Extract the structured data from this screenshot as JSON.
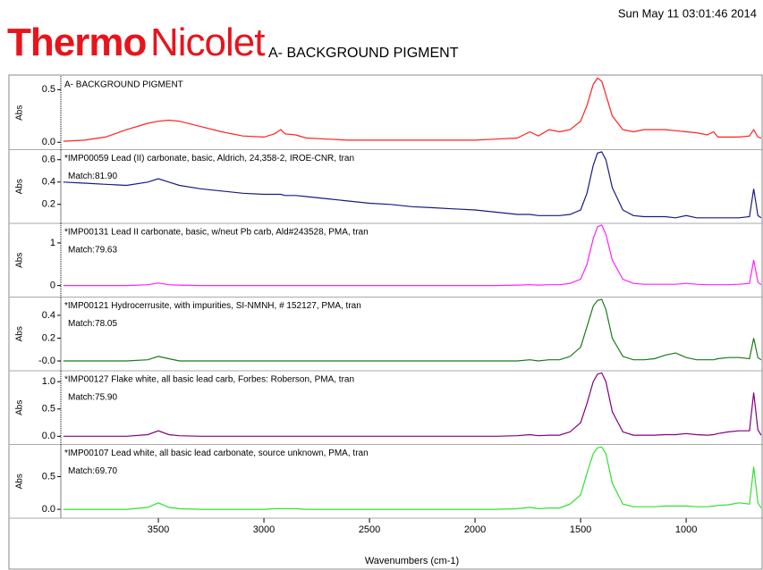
{
  "header": {
    "brand_bold": "Thermo",
    "brand": "Nicolet",
    "title": "A- BACKGROUND PIGMENT",
    "timestamp": "Sun May 11 03:01:46 2014"
  },
  "chart_data": [
    {
      "type": "line",
      "title": "A- BACKGROUND PIGMENT",
      "ylabel": "Abs",
      "color": "#ff2020",
      "xlim": [
        3962,
        636
      ],
      "ylim": [
        -0.07,
        0.63
      ],
      "yticks": [
        0.5,
        {
          "value": 0,
          "label": "0.0"
        }
      ],
      "x": [
        3950,
        3850,
        3750,
        3650,
        3550,
        3500,
        3450,
        3400,
        3300,
        3200,
        3100,
        3000,
        2950,
        2920,
        2900,
        2850,
        2800,
        2700,
        2600,
        2500,
        2400,
        2300,
        2200,
        2100,
        2000,
        1900,
        1800,
        1740,
        1700,
        1650,
        1600,
        1550,
        1500,
        1470,
        1440,
        1420,
        1400,
        1380,
        1350,
        1300,
        1250,
        1200,
        1150,
        1100,
        1050,
        1000,
        950,
        900,
        870,
        850,
        800,
        750,
        700,
        680,
        660,
        645
      ],
      "values": [
        0.01,
        0.02,
        0.05,
        0.12,
        0.18,
        0.2,
        0.21,
        0.2,
        0.15,
        0.1,
        0.06,
        0.05,
        0.08,
        0.12,
        0.08,
        0.07,
        0.04,
        0.03,
        0.02,
        0.02,
        0.02,
        0.02,
        0.02,
        0.02,
        0.02,
        0.03,
        0.04,
        0.1,
        0.06,
        0.12,
        0.1,
        0.12,
        0.2,
        0.35,
        0.55,
        0.61,
        0.58,
        0.45,
        0.25,
        0.12,
        0.1,
        0.12,
        0.12,
        0.12,
        0.11,
        0.1,
        0.09,
        0.07,
        0.1,
        0.05,
        0.05,
        0.05,
        0.06,
        0.12,
        0.05,
        0.04
      ]
    },
    {
      "type": "line",
      "title": "*IMP00059 Lead (II) carbonate, basic, Aldrich, 24,358-2, IROE-CNR, tran",
      "annotation": "Match:81.90",
      "ylabel": "Abs",
      "color": "#1a1a80",
      "xlim": [
        3962,
        636
      ],
      "ylim": [
        0.03,
        0.69
      ],
      "yticks": [
        0.6,
        0.4,
        0.2
      ],
      "x": [
        3950,
        3850,
        3750,
        3650,
        3550,
        3500,
        3450,
        3400,
        3300,
        3200,
        3100,
        3000,
        2950,
        2920,
        2900,
        2850,
        2800,
        2700,
        2600,
        2500,
        2400,
        2300,
        2200,
        2100,
        2000,
        1900,
        1800,
        1740,
        1700,
        1650,
        1600,
        1550,
        1500,
        1470,
        1440,
        1420,
        1400,
        1380,
        1350,
        1300,
        1250,
        1200,
        1150,
        1100,
        1050,
        1000,
        950,
        900,
        870,
        850,
        800,
        750,
        700,
        680,
        660,
        645
      ],
      "values": [
        0.4,
        0.39,
        0.38,
        0.37,
        0.4,
        0.43,
        0.4,
        0.37,
        0.34,
        0.32,
        0.3,
        0.29,
        0.29,
        0.29,
        0.28,
        0.28,
        0.27,
        0.25,
        0.23,
        0.21,
        0.2,
        0.18,
        0.17,
        0.16,
        0.15,
        0.13,
        0.11,
        0.11,
        0.1,
        0.1,
        0.1,
        0.11,
        0.15,
        0.3,
        0.55,
        0.66,
        0.67,
        0.6,
        0.35,
        0.15,
        0.1,
        0.09,
        0.09,
        0.09,
        0.08,
        0.1,
        0.08,
        0.08,
        0.08,
        0.08,
        0.08,
        0.08,
        0.09,
        0.34,
        0.1,
        0.08
      ]
    },
    {
      "type": "line",
      "title": "*IMP00131 Lead II carbonate, basic, w/neut Pb carb, Ald#243528, PMA, tran",
      "annotation": "Match:79.63",
      "ylabel": "Abs",
      "color": "#ff20ff",
      "xlim": [
        3962,
        636
      ],
      "ylim": [
        -0.27,
        1.46
      ],
      "yticks": [
        1,
        0
      ],
      "x": [
        3950,
        3850,
        3750,
        3650,
        3550,
        3500,
        3450,
        3400,
        3300,
        3200,
        3100,
        3000,
        2950,
        2920,
        2900,
        2850,
        2800,
        2700,
        2600,
        2500,
        2400,
        2300,
        2200,
        2100,
        2000,
        1900,
        1800,
        1740,
        1700,
        1650,
        1600,
        1550,
        1500,
        1470,
        1440,
        1420,
        1400,
        1380,
        1350,
        1300,
        1250,
        1200,
        1150,
        1100,
        1050,
        1000,
        950,
        900,
        870,
        850,
        800,
        750,
        700,
        680,
        660,
        645
      ],
      "values": [
        0,
        0,
        0,
        0,
        0.02,
        0.06,
        0.02,
        0.01,
        0,
        0,
        0,
        0,
        0,
        0,
        0,
        0,
        0,
        0,
        0,
        0,
        0,
        0,
        0,
        0,
        0,
        0,
        0.01,
        0.02,
        0.01,
        0.02,
        0.02,
        0.05,
        0.15,
        0.5,
        1.1,
        1.38,
        1.42,
        1.2,
        0.6,
        0.15,
        0.05,
        0.03,
        0.03,
        0.03,
        0.03,
        0.05,
        0.03,
        0.02,
        0.02,
        0.02,
        0.02,
        0.03,
        0.05,
        0.6,
        0.08,
        0.02
      ]
    },
    {
      "type": "line",
      "title": "*IMP00121 Hydrocerrusite, with impurities, SI-NMNH, # 152127, PMA, tran",
      "annotation": "Match:78.05",
      "ylabel": "Abs",
      "color": "#1a7a1a",
      "xlim": [
        3962,
        636
      ],
      "ylim": [
        -0.086,
        0.56
      ],
      "yticks": [
        0.4,
        0.2,
        {
          "value": 0,
          "label": "-0.0"
        }
      ],
      "x": [
        3950,
        3850,
        3750,
        3650,
        3550,
        3500,
        3450,
        3400,
        3300,
        3200,
        3100,
        3000,
        2950,
        2920,
        2900,
        2850,
        2800,
        2700,
        2600,
        2500,
        2400,
        2300,
        2200,
        2100,
        2000,
        1900,
        1800,
        1740,
        1700,
        1650,
        1600,
        1550,
        1500,
        1470,
        1440,
        1420,
        1400,
        1380,
        1350,
        1300,
        1250,
        1200,
        1150,
        1100,
        1050,
        1000,
        950,
        900,
        870,
        850,
        800,
        750,
        700,
        680,
        660,
        645
      ],
      "values": [
        0,
        0,
        0,
        0,
        0.01,
        0.04,
        0.02,
        0,
        0,
        0,
        0,
        0,
        0,
        0,
        0,
        0,
        0,
        0,
        0,
        0,
        0,
        0,
        0,
        0,
        0,
        0,
        0,
        0.01,
        0,
        0.01,
        0.01,
        0.04,
        0.12,
        0.3,
        0.48,
        0.53,
        0.54,
        0.45,
        0.2,
        0.04,
        0.01,
        0.01,
        0.02,
        0.05,
        0.07,
        0.03,
        0.01,
        0.01,
        0.01,
        0.02,
        0.03,
        0.03,
        0.02,
        0.2,
        0.03,
        0.01
      ]
    },
    {
      "type": "line",
      "title": "*IMP00127 Flake white, all basic lead carb, Forbes: Roberson, PMA, tran",
      "annotation": "Match:75.90",
      "ylabel": "Abs",
      "color": "#800080",
      "xlim": [
        3962,
        636
      ],
      "ylim": [
        -0.15,
        1.2
      ],
      "yticks": [
        {
          "value": 1,
          "label": "1.0"
        },
        0.5,
        {
          "value": 0,
          "label": "0.0"
        }
      ],
      "x": [
        3950,
        3850,
        3750,
        3650,
        3550,
        3500,
        3450,
        3400,
        3300,
        3200,
        3100,
        3000,
        2950,
        2920,
        2900,
        2850,
        2800,
        2700,
        2600,
        2500,
        2400,
        2300,
        2200,
        2100,
        2000,
        1900,
        1800,
        1740,
        1700,
        1650,
        1600,
        1550,
        1500,
        1470,
        1440,
        1420,
        1400,
        1380,
        1350,
        1300,
        1250,
        1200,
        1150,
        1100,
        1050,
        1000,
        950,
        900,
        870,
        850,
        800,
        750,
        700,
        680,
        660,
        645
      ],
      "values": [
        0,
        0,
        0,
        0,
        0.03,
        0.1,
        0.03,
        0.01,
        0,
        0,
        0,
        0,
        0,
        0,
        0,
        0,
        0,
        0,
        0,
        0,
        0,
        0,
        0,
        0,
        0,
        0,
        0.01,
        0.03,
        0.01,
        0.02,
        0.02,
        0.08,
        0.25,
        0.6,
        1.0,
        1.14,
        1.16,
        1.0,
        0.45,
        0.08,
        0.02,
        0.02,
        0.02,
        0.03,
        0.03,
        0.05,
        0.03,
        0.02,
        0.03,
        0.05,
        0.08,
        0.1,
        0.1,
        0.8,
        0.12,
        0.02
      ]
    },
    {
      "type": "line",
      "title": "*IMP00107 Lead white, all basic lead carbonate, source unknown, PMA, tran",
      "annotation": "Match:69.70",
      "ylabel": "Abs",
      "color": "#30e030",
      "xlim": [
        3962,
        636
      ],
      "ylim": [
        -0.135,
        0.99
      ],
      "yticks": [
        0.5,
        {
          "value": 0,
          "label": "0.0"
        }
      ],
      "xticks": [
        3500,
        3000,
        2500,
        2000,
        1500,
        1000
      ],
      "xlabel": "Wavenumbers (cm-1)",
      "x": [
        3950,
        3850,
        3750,
        3650,
        3550,
        3500,
        3450,
        3400,
        3300,
        3200,
        3100,
        3000,
        2950,
        2920,
        2900,
        2850,
        2800,
        2700,
        2600,
        2500,
        2400,
        2300,
        2200,
        2100,
        2000,
        1900,
        1800,
        1740,
        1700,
        1650,
        1600,
        1550,
        1500,
        1470,
        1440,
        1420,
        1400,
        1380,
        1350,
        1300,
        1250,
        1200,
        1150,
        1100,
        1050,
        1000,
        950,
        900,
        870,
        850,
        800,
        750,
        700,
        680,
        660,
        645
      ],
      "values": [
        0,
        0,
        0,
        0,
        0.03,
        0.1,
        0.03,
        0.01,
        0,
        0,
        0,
        0,
        0.01,
        0.01,
        0.01,
        0.01,
        0,
        0,
        0,
        0,
        0,
        0,
        0,
        0,
        0,
        0,
        0.01,
        0.03,
        0.01,
        0.02,
        0.02,
        0.08,
        0.22,
        0.55,
        0.85,
        0.94,
        0.95,
        0.85,
        0.4,
        0.08,
        0.04,
        0.04,
        0.04,
        0.05,
        0.05,
        0.05,
        0.04,
        0.04,
        0.05,
        0.06,
        0.07,
        0.1,
        0.08,
        0.65,
        0.1,
        0.02
      ]
    }
  ]
}
